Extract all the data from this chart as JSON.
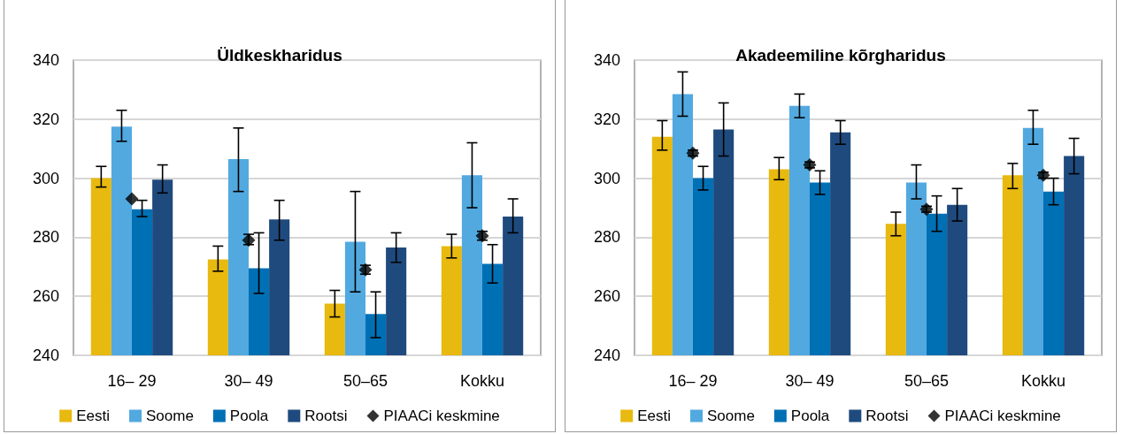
{
  "chart_data": [
    {
      "type": "bar",
      "title": "Üldkeskharidus",
      "categories": [
        "16– 29",
        "30– 49",
        "50–65",
        "Kokku"
      ],
      "ylim": [
        240,
        340
      ],
      "yticks": [
        240,
        260,
        280,
        300,
        320,
        340
      ],
      "grid": "y",
      "legend": "bottom",
      "series": [
        {
          "name": "Eesti",
          "color": "#e8b90f",
          "values": [
            300,
            272.5,
            257.5,
            277
          ],
          "errors": [
            [
              297,
              304
            ],
            [
              268.5,
              277
            ],
            [
              253,
              262
            ],
            [
              273,
              281
            ]
          ]
        },
        {
          "name": "Soome",
          "color": "#52a9e0",
          "values": [
            317.5,
            306.5,
            278.5,
            301
          ],
          "errors": [
            [
              312.5,
              323
            ],
            [
              295.5,
              317
            ],
            [
              261.5,
              295.5
            ],
            [
              290,
              312
            ]
          ]
        },
        {
          "name": "Poola",
          "color": "#0070b5",
          "values": [
            289.5,
            269.5,
            254,
            271
          ],
          "errors": [
            [
              287,
              292.5
            ],
            [
              261,
              281.5
            ],
            [
              246,
              261.5
            ],
            [
              264.5,
              277.5
            ]
          ]
        },
        {
          "name": "Rootsi",
          "color": "#1f4a7e",
          "values": [
            299.5,
            286,
            276.5,
            287
          ],
          "errors": [
            [
              295,
              304.5
            ],
            [
              279,
              292.5
            ],
            [
              271.5,
              281.5
            ],
            [
              281.5,
              293
            ]
          ]
        },
        {
          "name": "PIAACi keskmine",
          "type": "scatter",
          "marker": "diamond",
          "color": "#000000",
          "x": [
            "16– 29",
            "30– 49",
            "50–65",
            "Kokku"
          ],
          "values": [
            293,
            279,
            269,
            280.5
          ],
          "errors": [
            null,
            [
              277.5,
              281
            ],
            [
              267.5,
              270.5
            ],
            [
              279,
              282
            ]
          ]
        }
      ]
    },
    {
      "type": "bar",
      "title": "Akadeemiline kõrgharidus",
      "categories": [
        "16– 29",
        "30– 49",
        "50–65",
        "Kokku"
      ],
      "ylim": [
        240,
        340
      ],
      "yticks": [
        240,
        260,
        280,
        300,
        320,
        340
      ],
      "grid": "y",
      "legend": "bottom",
      "series": [
        {
          "name": "Eesti",
          "color": "#e8b90f",
          "values": [
            314,
            303,
            284.5,
            301
          ],
          "errors": [
            [
              309.5,
              319.5
            ],
            [
              299.5,
              307
            ],
            [
              280.5,
              288.5
            ],
            [
              296.5,
              305
            ]
          ]
        },
        {
          "name": "Soome",
          "color": "#52a9e0",
          "values": [
            328.5,
            324.5,
            298.5,
            317
          ],
          "errors": [
            [
              321,
              336
            ],
            [
              320.5,
              328.5
            ],
            [
              293,
              304.5
            ],
            [
              311.5,
              323
            ]
          ]
        },
        {
          "name": "Poola",
          "color": "#0070b5",
          "values": [
            300,
            298.5,
            288,
            295.5
          ],
          "errors": [
            [
              296,
              304
            ],
            [
              294.5,
              302.5
            ],
            [
              282,
              294
            ],
            [
              291,
              300
            ]
          ]
        },
        {
          "name": "Rootsi",
          "color": "#1f4a7e",
          "values": [
            316.5,
            315.5,
            291,
            307.5
          ],
          "errors": [
            [
              307.5,
              325.5
            ],
            [
              311.5,
              319.5
            ],
            [
              285.5,
              296.5
            ],
            [
              301.5,
              313.5
            ]
          ]
        },
        {
          "name": "PIAACi keskmine",
          "type": "scatter",
          "marker": "diamond",
          "color": "#000000",
          "x": [
            "16– 29",
            "30– 49",
            "50–65",
            "Kokku"
          ],
          "values": [
            308.5,
            304.5,
            289.5,
            301
          ],
          "errors": [
            [
              307.5,
              309.5
            ],
            [
              303.5,
              305.5
            ],
            [
              288.5,
              290.5
            ],
            [
              300,
              302
            ]
          ]
        }
      ]
    }
  ]
}
